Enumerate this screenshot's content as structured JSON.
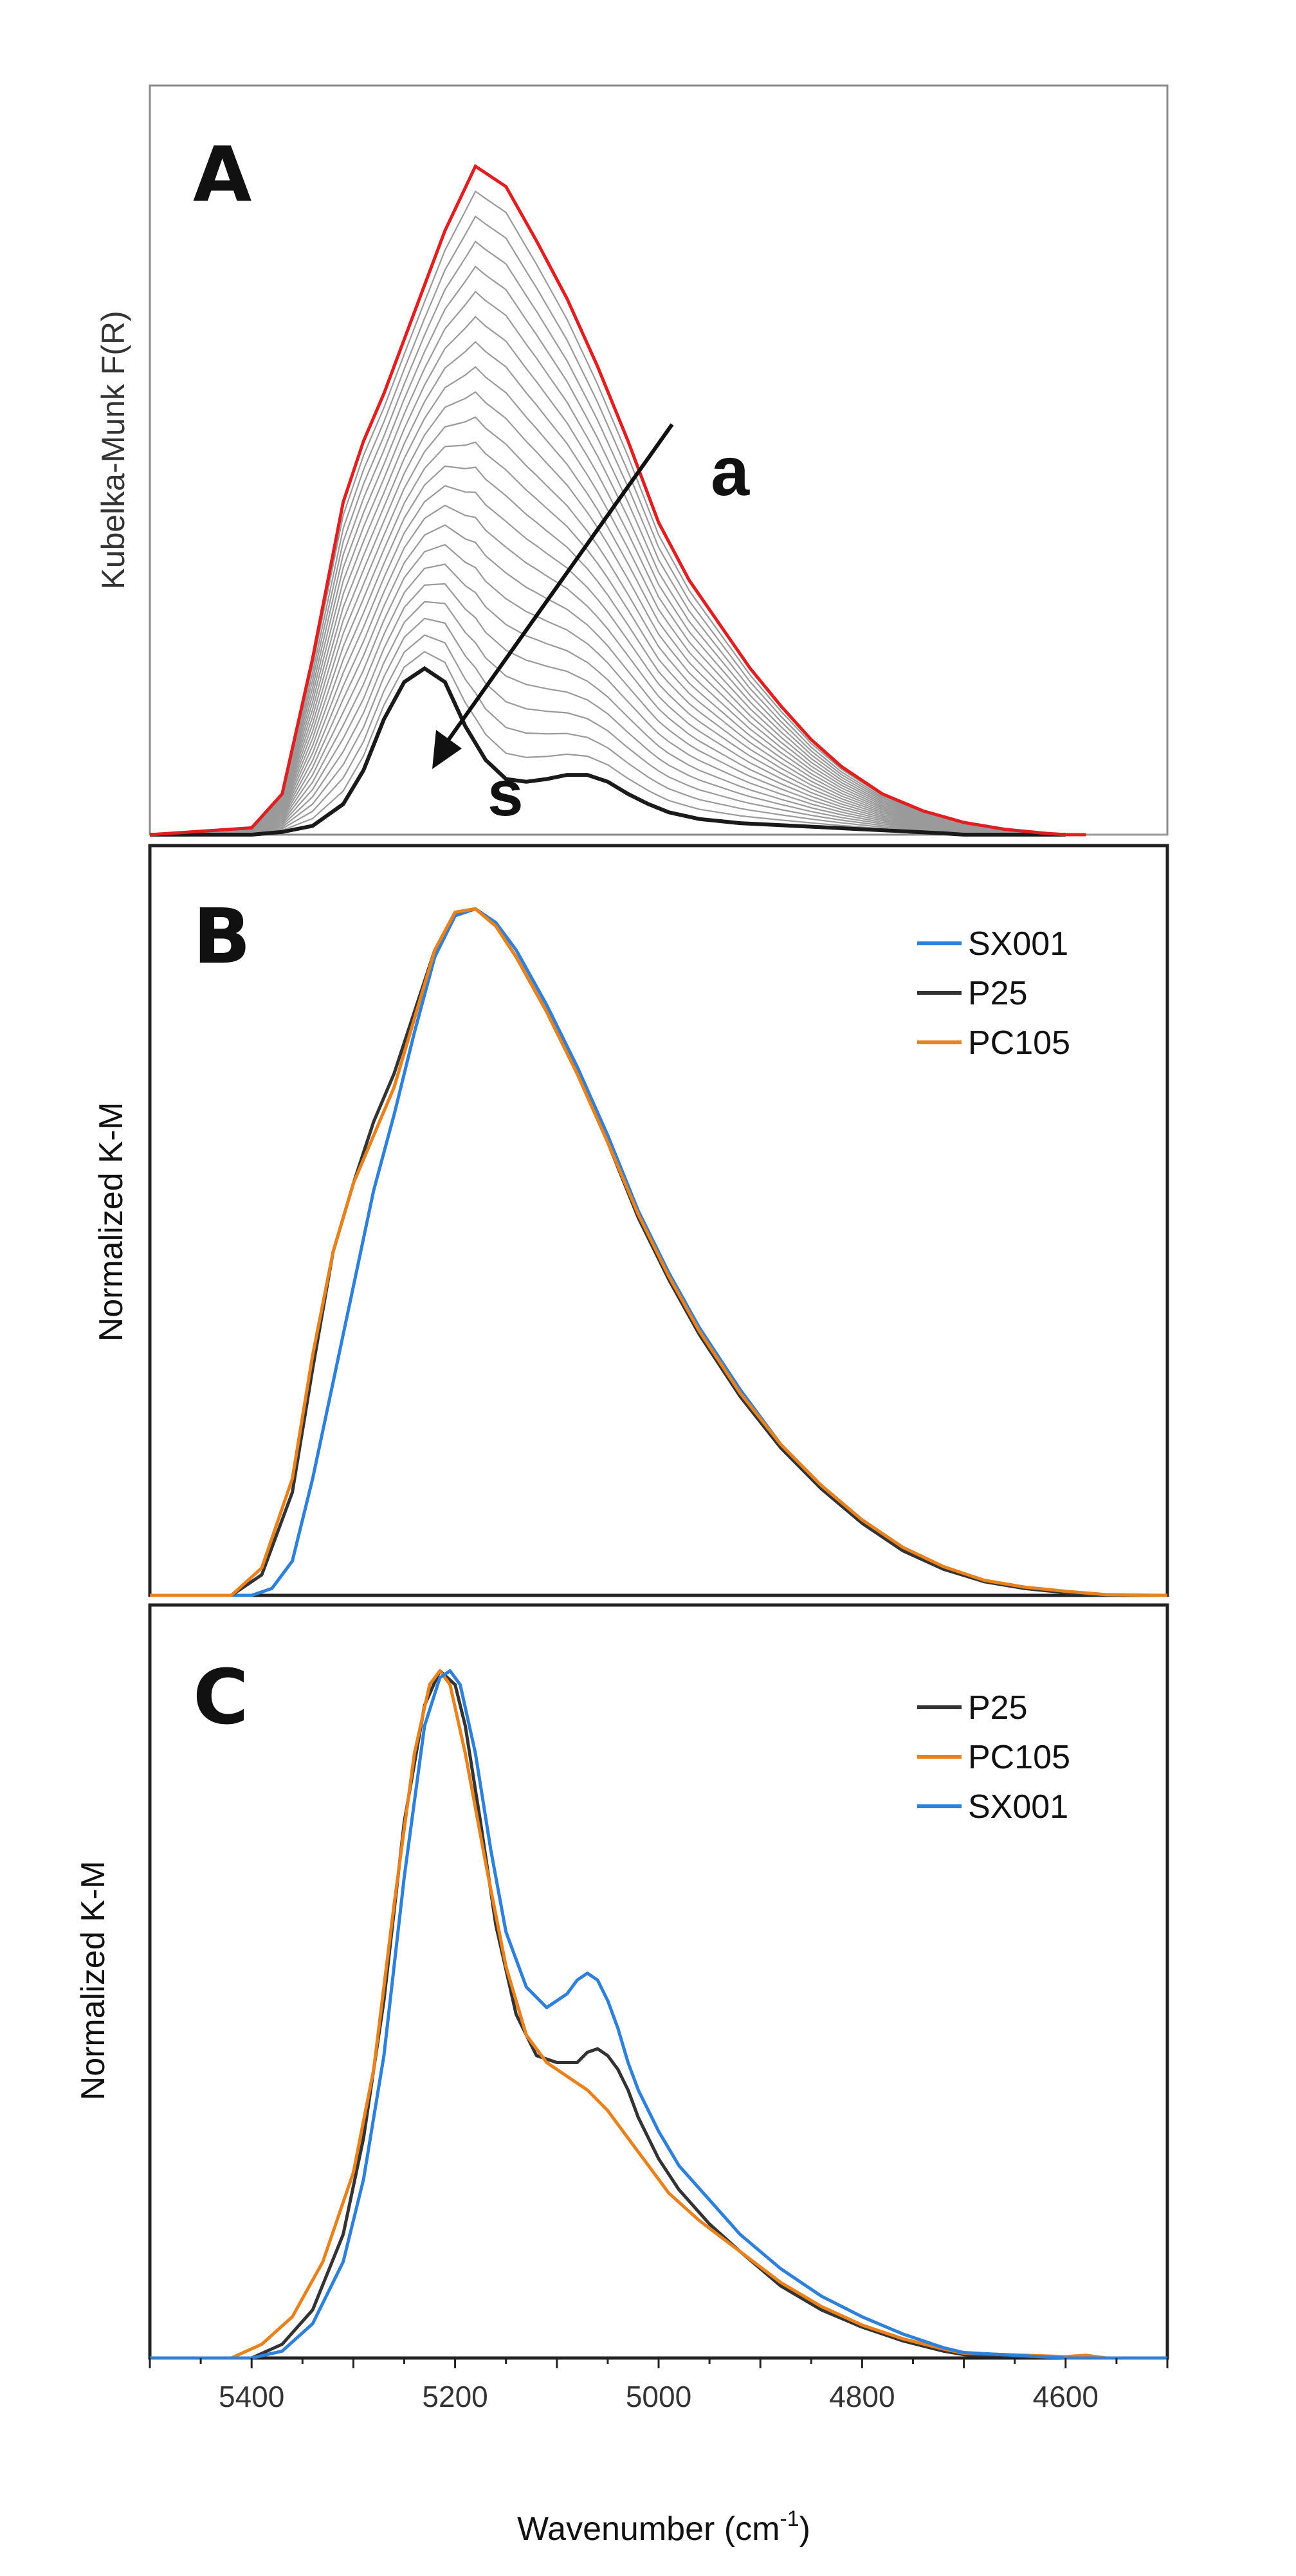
{
  "chart_data": [
    {
      "panel": "A",
      "type": "line",
      "ylabel": "Kubelka-Munk F(R)",
      "xlim": [
        5500,
        4500
      ],
      "ylim": [
        0,
        1.05
      ],
      "annotations": {
        "arrow_label": "a",
        "end_label": "s"
      },
      "n_intermediate_curves": 22,
      "series": [
        {
          "name": "a",
          "color": "#e02020",
          "x": [
            5500,
            5400,
            5370,
            5340,
            5310,
            5290,
            5270,
            5240,
            5210,
            5180,
            5150,
            5120,
            5090,
            5060,
            5030,
            5000,
            4970,
            4940,
            4910,
            4880,
            4850,
            4820,
            4780,
            4740,
            4700,
            4660,
            4620,
            4600,
            4580
          ],
          "y": [
            0.0,
            0.01,
            0.06,
            0.26,
            0.49,
            0.58,
            0.65,
            0.77,
            0.89,
            0.985,
            0.955,
            0.875,
            0.79,
            0.69,
            0.58,
            0.46,
            0.375,
            0.31,
            0.245,
            0.19,
            0.14,
            0.1,
            0.06,
            0.035,
            0.018,
            0.008,
            0.002,
            0.0,
            0.0
          ]
        },
        {
          "name": "s",
          "color": "#1a1a1a",
          "x": [
            5500,
            5400,
            5370,
            5340,
            5310,
            5290,
            5270,
            5250,
            5230,
            5210,
            5190,
            5170,
            5150,
            5130,
            5110,
            5090,
            5070,
            5050,
            5030,
            5010,
            4990,
            4960,
            4920,
            4880,
            4840,
            4800,
            4760,
            4720,
            4700,
            4650,
            4600
          ],
          "y": [
            0.0,
            0.0,
            0.004,
            0.013,
            0.045,
            0.095,
            0.17,
            0.225,
            0.245,
            0.225,
            0.16,
            0.11,
            0.082,
            0.078,
            0.082,
            0.088,
            0.088,
            0.078,
            0.06,
            0.045,
            0.033,
            0.023,
            0.017,
            0.014,
            0.011,
            0.008,
            0.005,
            0.002,
            0.0,
            0.0,
            0.0
          ]
        }
      ]
    },
    {
      "panel": "B",
      "type": "line",
      "ylabel": "Normalized K-M",
      "xlim": [
        5500,
        4500
      ],
      "ylim": [
        0,
        1.05
      ],
      "legend_position": "top-right",
      "series": [
        {
          "name": "SX001",
          "color": "#2f80d8",
          "x": [
            5500,
            5400,
            5380,
            5360,
            5340,
            5320,
            5300,
            5280,
            5260,
            5240,
            5220,
            5200,
            5180,
            5160,
            5140,
            5110,
            5080,
            5050,
            5020,
            4990,
            4960,
            4920,
            4880,
            4840,
            4800,
            4760,
            4720,
            4680,
            4640,
            4600,
            4560,
            4500
          ],
          "y": [
            0.0,
            0.0,
            0.01,
            0.05,
            0.17,
            0.31,
            0.45,
            0.59,
            0.7,
            0.82,
            0.93,
            0.99,
            1.0,
            0.98,
            0.94,
            0.86,
            0.77,
            0.67,
            0.56,
            0.47,
            0.39,
            0.3,
            0.22,
            0.16,
            0.11,
            0.07,
            0.04,
            0.02,
            0.01,
            0.004,
            0.0,
            0.0
          ]
        },
        {
          "name": "P25",
          "color": "#333333",
          "x": [
            5500,
            5420,
            5390,
            5360,
            5340,
            5320,
            5300,
            5280,
            5260,
            5240,
            5220,
            5200,
            5180,
            5160,
            5140,
            5110,
            5080,
            5050,
            5020,
            4990,
            4960,
            4920,
            4880,
            4840,
            4800,
            4760,
            4720,
            4680,
            4640,
            4600,
            4560,
            4500
          ],
          "y": [
            0.0,
            0.0,
            0.03,
            0.15,
            0.33,
            0.5,
            0.6,
            0.69,
            0.76,
            0.85,
            0.94,
            0.995,
            1.0,
            0.975,
            0.93,
            0.85,
            0.76,
            0.66,
            0.55,
            0.46,
            0.38,
            0.29,
            0.215,
            0.155,
            0.105,
            0.065,
            0.038,
            0.02,
            0.01,
            0.004,
            0.0,
            0.0
          ]
        },
        {
          "name": "PC105",
          "color": "#e8821f",
          "x": [
            5500,
            5420,
            5390,
            5360,
            5340,
            5320,
            5300,
            5280,
            5260,
            5240,
            5220,
            5200,
            5180,
            5160,
            5140,
            5110,
            5080,
            5050,
            5020,
            4990,
            4960,
            4920,
            4880,
            4840,
            4800,
            4760,
            4720,
            4680,
            4640,
            4600,
            4560,
            4500
          ],
          "y": [
            0.0,
            0.0,
            0.04,
            0.17,
            0.35,
            0.5,
            0.6,
            0.67,
            0.74,
            0.84,
            0.94,
            0.995,
            1.0,
            0.975,
            0.93,
            0.85,
            0.76,
            0.66,
            0.555,
            0.465,
            0.385,
            0.295,
            0.22,
            0.16,
            0.11,
            0.07,
            0.042,
            0.022,
            0.012,
            0.006,
            0.001,
            0.0
          ]
        }
      ]
    },
    {
      "panel": "C",
      "type": "line",
      "ylabel": "Normalized K-M",
      "xlabel": "Wavenumber (cm",
      "xlabel_superscript": "-1",
      "xlabel_suffix": ")",
      "xlim": [
        5500,
        4500
      ],
      "ylim": [
        0,
        1.05
      ],
      "x_ticks": [
        5400,
        5200,
        5000,
        4800,
        4600
      ],
      "x_tick_labels": [
        "5400",
        "5200",
        "5000",
        "4800",
        "4600"
      ],
      "legend_position": "top-right",
      "series": [
        {
          "name": "P25",
          "color": "#333333",
          "x": [
            5500,
            5400,
            5370,
            5340,
            5310,
            5290,
            5270,
            5250,
            5230,
            5215,
            5200,
            5190,
            5175,
            5160,
            5140,
            5120,
            5100,
            5080,
            5070,
            5060,
            5050,
            5040,
            5030,
            5020,
            5000,
            4980,
            4950,
            4920,
            4880,
            4840,
            4800,
            4760,
            4720,
            4700,
            4600,
            4500
          ],
          "y": [
            0.0,
            0.0,
            0.02,
            0.07,
            0.18,
            0.32,
            0.52,
            0.78,
            0.95,
            1.0,
            0.98,
            0.92,
            0.78,
            0.63,
            0.5,
            0.44,
            0.43,
            0.43,
            0.445,
            0.45,
            0.44,
            0.42,
            0.39,
            0.35,
            0.29,
            0.245,
            0.195,
            0.155,
            0.105,
            0.07,
            0.045,
            0.025,
            0.01,
            0.005,
            0.0,
            0.0
          ]
        },
        {
          "name": "PC105",
          "color": "#e8821f",
          "x": [
            5500,
            5420,
            5390,
            5360,
            5330,
            5300,
            5280,
            5260,
            5240,
            5225,
            5215,
            5205,
            5190,
            5170,
            5150,
            5130,
            5110,
            5090,
            5070,
            5050,
            5030,
            5010,
            4990,
            4960,
            4920,
            4880,
            4840,
            4800,
            4760,
            4720,
            4700,
            4600,
            4580,
            4560,
            4500
          ],
          "y": [
            0.0,
            0.0,
            0.02,
            0.06,
            0.14,
            0.27,
            0.42,
            0.66,
            0.88,
            0.98,
            1.0,
            0.98,
            0.88,
            0.72,
            0.57,
            0.47,
            0.43,
            0.41,
            0.39,
            0.36,
            0.32,
            0.28,
            0.24,
            0.2,
            0.155,
            0.11,
            0.075,
            0.048,
            0.028,
            0.013,
            0.007,
            0.002,
            0.004,
            0.0,
            0.0
          ]
        },
        {
          "name": "SX001",
          "color": "#2f80d8",
          "x": [
            5500,
            5400,
            5370,
            5340,
            5310,
            5290,
            5270,
            5250,
            5230,
            5215,
            5205,
            5195,
            5180,
            5165,
            5150,
            5130,
            5110,
            5090,
            5080,
            5070,
            5060,
            5050,
            5040,
            5030,
            5020,
            5000,
            4980,
            4950,
            4920,
            4880,
            4840,
            4800,
            4760,
            4720,
            4700,
            4600,
            4500
          ],
          "y": [
            0.0,
            0.0,
            0.01,
            0.05,
            0.14,
            0.26,
            0.44,
            0.7,
            0.92,
            0.99,
            1.0,
            0.98,
            0.88,
            0.74,
            0.62,
            0.54,
            0.51,
            0.53,
            0.55,
            0.56,
            0.55,
            0.52,
            0.48,
            0.43,
            0.39,
            0.33,
            0.28,
            0.23,
            0.18,
            0.13,
            0.09,
            0.06,
            0.035,
            0.015,
            0.008,
            0.0,
            0.0
          ]
        }
      ]
    }
  ]
}
